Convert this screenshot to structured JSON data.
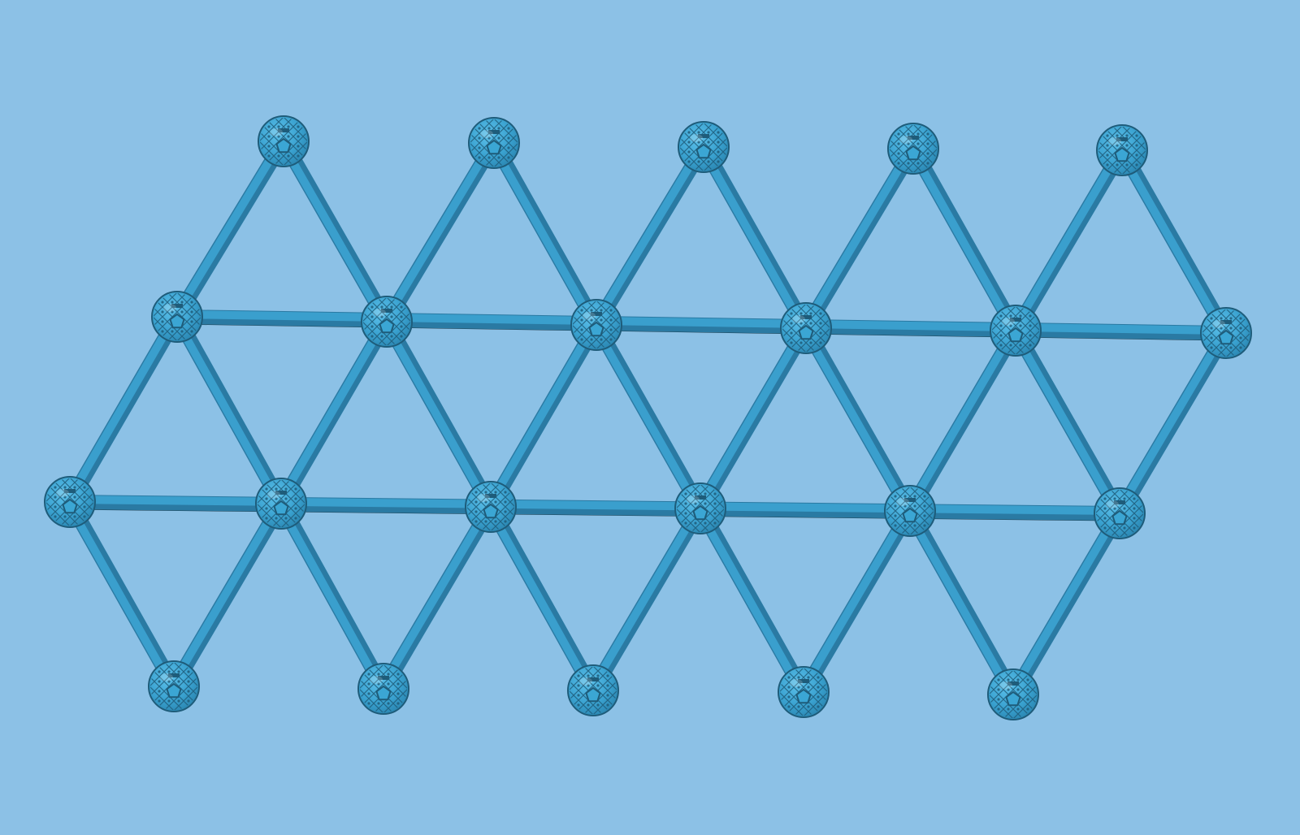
{
  "scene": {
    "background_color": "#8cc1e6",
    "strut_color": "#3a9fcd",
    "strut_dark_color": "#2a7aa3",
    "strut_shadow_color": "#1f3d4c",
    "node_color": "#3ba6d4",
    "node_dark_color": "#1e5c7a",
    "node_shape": "geodesic-sphere",
    "lattice": "triangular-grid",
    "rows": [
      {
        "name": "top-nodes",
        "count": 5
      },
      {
        "name": "upper-middle-nodes",
        "count": 6
      },
      {
        "name": "lower-middle-nodes",
        "count": 6
      },
      {
        "name": "bottom-nodes",
        "count": 5
      }
    ]
  }
}
